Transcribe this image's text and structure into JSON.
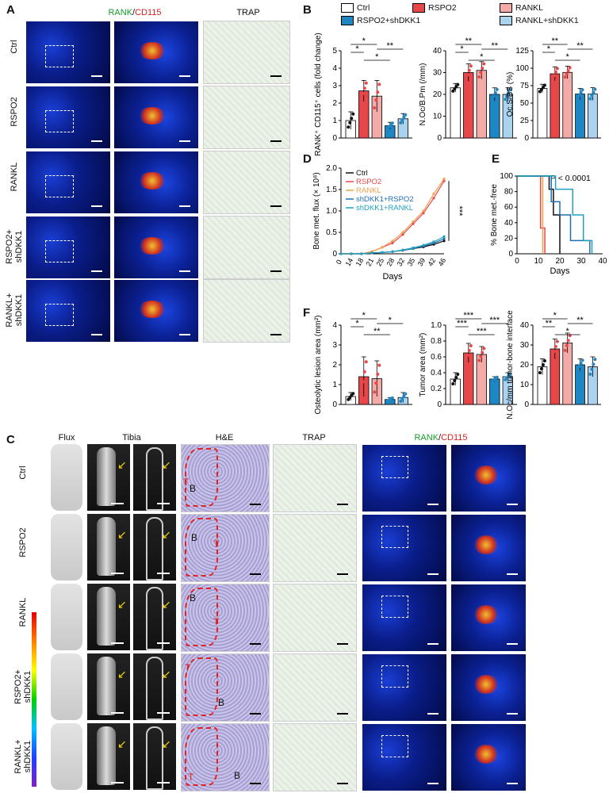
{
  "panels": {
    "A": "A",
    "B": "B",
    "C": "C",
    "D": "D",
    "E": "E",
    "F": "F"
  },
  "panelA": {
    "header_rank": "RANK",
    "header_sep": "/",
    "header_cd115": "CD115",
    "header_trap": "TRAP",
    "rows": [
      {
        "l1": "Ctrl",
        "l2": ""
      },
      {
        "l1": "RSPO2",
        "l2": ""
      },
      {
        "l1": "RANKL",
        "l2": ""
      },
      {
        "l1": "RSPO2+",
        "l2": "shDKK1"
      },
      {
        "l1": "RANKL+",
        "l2": "shDKK1"
      }
    ]
  },
  "legend": {
    "items": [
      {
        "label": "Ctrl",
        "color": "#ffffff"
      },
      {
        "label": "RSPO2",
        "color": "#e8474a"
      },
      {
        "label": "RANKL",
        "color": "#f4aaa6"
      },
      {
        "label": "RSPO2+shDKK1",
        "color": "#1f86c4"
      },
      {
        "label": "RANKL+shDKK1",
        "color": "#a9d3ef"
      }
    ],
    "colors": [
      "#ffffff",
      "#e8474a",
      "#f4aaa6",
      "#1f86c4",
      "#a9d3ef"
    ]
  },
  "panelC": {
    "headers": {
      "flux": "Flux",
      "tibia": "Tibia",
      "he": "H&E",
      "trap": "TRAP",
      "rank": "RANK",
      "sep": "/",
      "cd115": "CD115"
    },
    "rows": [
      {
        "l1": "Ctrl",
        "l2": ""
      },
      {
        "l1": "RSPO2",
        "l2": ""
      },
      {
        "l1": "RANKL",
        "l2": ""
      },
      {
        "l1": "RSPO2+",
        "l2": "shDKK1"
      },
      {
        "l1": "RANKL+",
        "l2": "shDKK1"
      }
    ],
    "he_labels": {
      "t": "T",
      "b": "B"
    }
  },
  "chart_data": [
    {
      "id": "B1",
      "type": "bar",
      "ylabel": "RANK⁺ CD115⁺ cells (fold change)",
      "ylim": [
        0,
        5
      ],
      "yticks": [
        0,
        1,
        2,
        3,
        4,
        5
      ],
      "categories": [
        "Ctrl",
        "RSPO2",
        "RANKL",
        "RSPO2+shDKK1",
        "RANKL+shDKK1"
      ],
      "values": [
        1.0,
        2.7,
        2.4,
        0.7,
        1.1
      ],
      "errors": [
        0.5,
        0.6,
        0.9,
        0.2,
        0.3
      ],
      "sig": [
        "*",
        "*",
        "*",
        "**"
      ]
    },
    {
      "id": "B2",
      "type": "bar",
      "ylabel": "N.Oc/B.Pm (/mm)",
      "ylim": [
        0,
        40
      ],
      "yticks": [
        0,
        10,
        20,
        30,
        40
      ],
      "categories": [
        "Ctrl",
        "RSPO2",
        "RANKL",
        "RSPO2+shDKK1",
        "RANKL+shDKK1"
      ],
      "values": [
        23,
        30,
        31,
        20,
        20
      ],
      "errors": [
        2,
        4,
        4,
        3,
        3
      ],
      "sig": [
        "*",
        "**",
        "*",
        "**"
      ]
    },
    {
      "id": "B3",
      "type": "bar",
      "ylabel": "Oc.S/BS (%)",
      "ylim": [
        0,
        125
      ],
      "yticks": [
        0,
        25,
        50,
        75,
        100,
        125
      ],
      "categories": [
        "Ctrl",
        "RSPO2",
        "RANKL",
        "RSPO2+shDKK1",
        "RANKL+shDKK1"
      ],
      "values": [
        71,
        92,
        94,
        63,
        63
      ],
      "errors": [
        6,
        10,
        9,
        8,
        9
      ],
      "sig": [
        "*",
        "**",
        "*",
        "**"
      ]
    },
    {
      "id": "D",
      "type": "line",
      "xlabel": "Days",
      "ylabel": "Bone met. flux (× 10⁸)",
      "x": [
        0,
        14,
        18,
        21,
        25,
        28,
        32,
        35,
        39,
        42,
        46
      ],
      "xticks": [
        "0",
        "14",
        "18",
        "21",
        "25",
        "28",
        "32",
        "35",
        "39",
        "42",
        "46"
      ],
      "ylim": [
        0,
        2.0
      ],
      "yticks": [
        "0",
        "0.5",
        "1.0",
        "1.5",
        "2.0"
      ],
      "series": [
        {
          "name": "Ctrl",
          "color": "#111111",
          "values": [
            0,
            0,
            0,
            0.02,
            0.03,
            0.05,
            0.08,
            0.12,
            0.16,
            0.22,
            0.3
          ]
        },
        {
          "name": "RSPO2",
          "color": "#e8474a",
          "values": [
            0,
            0,
            0,
            0.05,
            0.15,
            0.25,
            0.45,
            0.7,
            0.95,
            1.3,
            1.7
          ]
        },
        {
          "name": "RANKL",
          "color": "#f0a050",
          "values": [
            0,
            0,
            0,
            0.05,
            0.15,
            0.3,
            0.5,
            0.75,
            1.0,
            1.4,
            1.75
          ]
        },
        {
          "name": "shDKK1+RSPO2",
          "color": "#1f6fb0",
          "values": [
            0,
            0,
            0,
            0.02,
            0.03,
            0.05,
            0.08,
            0.12,
            0.18,
            0.25,
            0.35
          ]
        },
        {
          "name": "shDKK1+RANKL",
          "color": "#20a0c0",
          "values": [
            0,
            0,
            0,
            0.02,
            0.03,
            0.05,
            0.09,
            0.14,
            0.2,
            0.28,
            0.4
          ]
        }
      ],
      "sig": "***"
    },
    {
      "id": "E",
      "type": "line",
      "xlabel": "Days",
      "ylabel": "% Bone met.-free",
      "annotation": "P < 0.0001",
      "xlim": [
        0,
        40
      ],
      "xticks": [
        "0",
        "10",
        "20",
        "30",
        "40"
      ],
      "ylim": [
        0,
        100
      ],
      "yticks": [
        "0",
        "20",
        "40",
        "60",
        "80",
        "100"
      ],
      "series": [
        {
          "color": "#e8474a",
          "steps": [
            [
              0,
              100
            ],
            [
              11,
              100
            ],
            [
              11,
              33
            ],
            [
              13,
              33
            ],
            [
              13,
              0
            ]
          ]
        },
        {
          "color": "#f0a050",
          "steps": [
            [
              0,
              100
            ],
            [
              12,
              100
            ],
            [
              12,
              0
            ]
          ]
        },
        {
          "color": "#111111",
          "steps": [
            [
              0,
              100
            ],
            [
              15,
              100
            ],
            [
              15,
              83
            ],
            [
              17,
              83
            ],
            [
              17,
              50
            ],
            [
              20,
              50
            ],
            [
              20,
              0
            ]
          ]
        },
        {
          "color": "#1f6fb0",
          "steps": [
            [
              0,
              100
            ],
            [
              16,
              100
            ],
            [
              16,
              67
            ],
            [
              20,
              67
            ],
            [
              20,
              50
            ],
            [
              25,
              50
            ],
            [
              25,
              17
            ],
            [
              34,
              17
            ],
            [
              34,
              0
            ]
          ]
        },
        {
          "color": "#20a0c0",
          "steps": [
            [
              0,
              100
            ],
            [
              18,
              100
            ],
            [
              18,
              83
            ],
            [
              26,
              83
            ],
            [
              26,
              50
            ],
            [
              31,
              50
            ],
            [
              31,
              17
            ],
            [
              35,
              17
            ],
            [
              35,
              0
            ]
          ]
        }
      ]
    },
    {
      "id": "F1",
      "type": "bar",
      "ylabel": "Osteolytic lesion area (mm²)",
      "ylim": [
        0,
        4
      ],
      "yticks": [
        0,
        1,
        2,
        3,
        4
      ],
      "categories": [
        "Ctrl",
        "RSPO2",
        "RANKL",
        "RSPO2+shDKK1",
        "RANKL+shDKK1"
      ],
      "values": [
        0.4,
        1.4,
        1.3,
        0.25,
        0.35
      ],
      "errors": [
        0.2,
        1.0,
        0.9,
        0.1,
        0.25
      ],
      "sig": [
        "*",
        "*",
        "**",
        "*"
      ]
    },
    {
      "id": "F2",
      "type": "bar",
      "ylabel": "Tumor area (mm²)",
      "ylim": [
        0,
        1.0
      ],
      "yticks": [
        "0",
        "0.2",
        "0.4",
        "0.6",
        "0.8",
        "1.0"
      ],
      "categories": [
        "Ctrl",
        "RSPO2",
        "RANKL",
        "RSPO2+shDKK1",
        "RANKL+shDKK1"
      ],
      "values": [
        0.32,
        0.65,
        0.63,
        0.32,
        0.35
      ],
      "errors": [
        0.08,
        0.12,
        0.1,
        0.03,
        0.05
      ],
      "sig": [
        "***",
        "***",
        "***",
        "***"
      ]
    },
    {
      "id": "F3",
      "type": "bar",
      "ylabel": "N.Oc/mm tumor-bone interface",
      "ylim": [
        0,
        40
      ],
      "yticks": [
        0,
        10,
        20,
        30,
        40
      ],
      "categories": [
        "Ctrl",
        "RSPO2",
        "RANKL",
        "RSPO2+shDKK1",
        "RANKL+shDKK1"
      ],
      "values": [
        19,
        28,
        31,
        20,
        19
      ],
      "errors": [
        4,
        5,
        5,
        3,
        5
      ],
      "sig": [
        "**",
        "*",
        "*",
        "**"
      ]
    }
  ]
}
